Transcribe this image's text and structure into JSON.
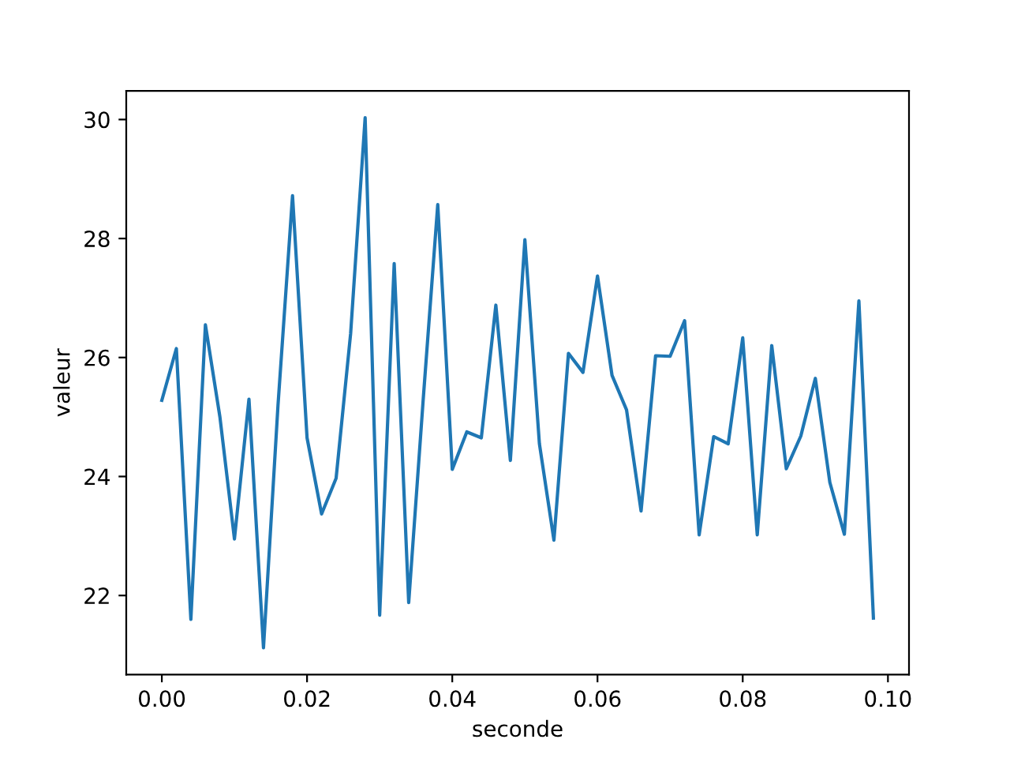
{
  "chart_data": {
    "type": "line",
    "xlabel": "seconde",
    "ylabel": "valeur",
    "x": [
      0.0,
      0.002,
      0.004,
      0.006,
      0.008,
      0.01,
      0.012,
      0.014,
      0.016,
      0.018,
      0.02,
      0.022,
      0.024,
      0.026,
      0.028,
      0.03,
      0.032,
      0.034,
      0.036,
      0.038,
      0.04,
      0.042,
      0.044,
      0.046,
      0.048,
      0.05,
      0.052,
      0.054,
      0.056,
      0.058,
      0.06,
      0.062,
      0.064,
      0.066,
      0.068,
      0.07,
      0.072,
      0.074,
      0.076,
      0.078,
      0.08,
      0.082,
      0.084,
      0.086,
      0.088,
      0.09,
      0.092,
      0.094,
      0.096,
      0.098
    ],
    "series": [
      {
        "color": "#1f77b4",
        "values": [
          25.28,
          26.15,
          21.6,
          26.55,
          25.0,
          22.95,
          25.3,
          21.12,
          25.2,
          28.72,
          24.65,
          23.37,
          23.97,
          26.4,
          30.03,
          21.67,
          27.58,
          21.88,
          25.3,
          28.57,
          24.12,
          24.75,
          24.65,
          26.88,
          24.27,
          27.98,
          24.55,
          22.93,
          26.07,
          25.75,
          27.37,
          25.7,
          25.12,
          23.42,
          26.03,
          26.02,
          26.62,
          23.02,
          24.67,
          24.55,
          26.33,
          23.02,
          26.2,
          24.13,
          24.68,
          25.65,
          23.9,
          23.03,
          26.95,
          21.62
        ]
      }
    ],
    "xlim": [
      -0.0049,
      0.1029
    ],
    "ylim": [
      20.67,
      30.48
    ],
    "xticks": [
      {
        "value": 0.0,
        "label": "0.00"
      },
      {
        "value": 0.02,
        "label": "0.02"
      },
      {
        "value": 0.04,
        "label": "0.04"
      },
      {
        "value": 0.06,
        "label": "0.06"
      },
      {
        "value": 0.08,
        "label": "0.08"
      },
      {
        "value": 0.1,
        "label": "0.10"
      }
    ],
    "yticks": [
      22,
      24,
      26,
      28,
      30
    ],
    "grid": false,
    "marker": "none",
    "line_style": "solid"
  }
}
